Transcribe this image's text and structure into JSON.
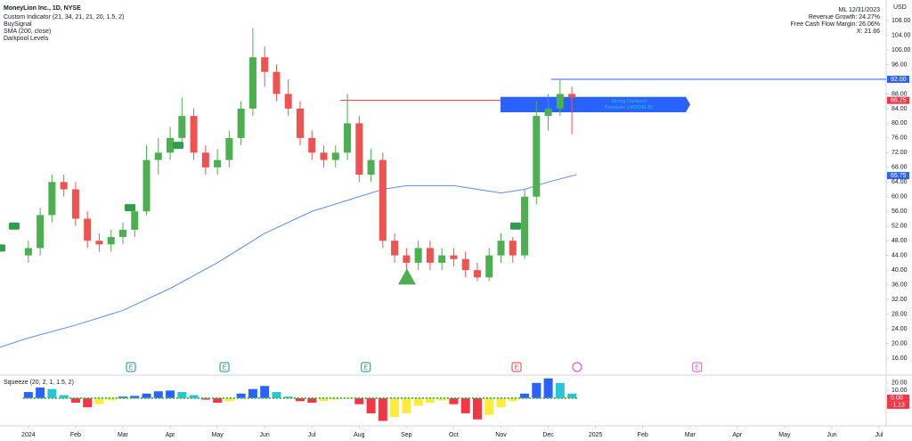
{
  "chart_data": [
    {
      "type": "candlestick",
      "title": "MoneyLion Inc., 1D, NYSE",
      "indicators": [
        "Custom Indicator (21, 34, 21, 21, 20, 1.5, 2)",
        "BuySignal",
        "SMA (200, close)",
        "Darkpool Levels"
      ],
      "currency": "USD",
      "info_lines": [
        "ML 12/31/2023",
        "Revenue Growth: 24.27%",
        "Free Cash Flow Margin: 26.06%",
        "X: 21.66"
      ],
      "up_color": "#4caf50",
      "down_color": "#ef5350",
      "x": [
        0,
        0.25,
        0.5,
        0.75,
        1,
        1.25,
        1.5,
        1.75,
        2,
        2.25,
        2.5,
        2.75,
        3,
        3.25,
        3.5,
        3.75,
        4,
        4.25,
        4.5,
        4.75,
        5,
        5.25,
        5.5,
        5.75,
        6,
        6.25,
        6.5,
        6.75,
        7,
        7.25,
        7.5,
        7.75,
        8,
        8.25,
        8.5,
        8.75,
        9,
        9.25,
        9.5,
        9.75,
        10,
        10.25,
        10.5,
        10.75,
        11,
        11.25,
        11.5
      ],
      "open": [
        44,
        46,
        55,
        64,
        62,
        54,
        48,
        47,
        49,
        51,
        56,
        70,
        72,
        76,
        82,
        72,
        68,
        70,
        76,
        84,
        98,
        94,
        88,
        84,
        76,
        72,
        70,
        72,
        80,
        66,
        70,
        48,
        44,
        42,
        46,
        42,
        44,
        43,
        40,
        38,
        44,
        48,
        44,
        60,
        82,
        84,
        88
      ],
      "high": [
        48,
        57,
        66,
        66,
        64,
        56,
        50,
        51,
        53,
        58,
        74,
        76,
        79,
        87,
        84,
        74,
        73,
        78,
        86,
        106,
        101,
        96,
        92,
        86,
        78,
        74,
        74,
        88,
        82,
        73,
        72,
        50,
        46,
        48,
        48,
        46,
        46,
        45,
        42,
        46,
        50,
        49,
        62,
        86,
        88,
        92,
        90
      ],
      "low": [
        42,
        44,
        53,
        60,
        52,
        46,
        45,
        45,
        47,
        49,
        55,
        66,
        70,
        74,
        70,
        66,
        66,
        68,
        74,
        82,
        90,
        86,
        82,
        74,
        70,
        68,
        68,
        70,
        64,
        64,
        46,
        42,
        40,
        40,
        40,
        40,
        41,
        38,
        37,
        37,
        42,
        42,
        43,
        58,
        78,
        82,
        77
      ],
      "close": [
        46,
        55,
        64,
        62,
        54,
        48,
        47,
        49,
        51,
        56,
        70,
        72,
        76,
        82,
        72,
        68,
        70,
        76,
        84,
        98,
        94,
        88,
        84,
        76,
        72,
        70,
        72,
        80,
        66,
        70,
        48,
        44,
        42,
        46,
        42,
        44,
        43,
        40,
        38,
        44,
        48,
        44,
        60,
        82,
        84,
        88,
        87
      ],
      "overlays": [
        {
          "color": "#5b8def",
          "x": [
            -0.6,
            0,
            1,
            2,
            3,
            4,
            5,
            6,
            7,
            7.5,
            8,
            8.5,
            9,
            9.5,
            10,
            10.5,
            11,
            11.6
          ],
          "values": [
            19,
            21.5,
            25,
            29,
            35,
            42,
            50,
            56,
            60,
            62,
            63,
            63,
            63,
            62,
            61,
            62,
            64,
            66
          ]
        }
      ],
      "levels": [
        {
          "value": 92,
          "from": 11.06,
          "color": "#2962ff"
        },
        {
          "value": 86.25,
          "from": 6.6,
          "to": 10.0,
          "color": "#f23645"
        }
      ],
      "darkpool": {
        "top": 87.2,
        "bottom": 83,
        "from": 9.99,
        "to": 13.91,
        "color": "#2962ff",
        "lines": [
          "Strong Darkpool",
          "Premium: 1455096.25"
        ]
      },
      "signals": [
        {
          "x": -0.6,
          "value": 46
        },
        {
          "x": -0.3,
          "value": 52
        },
        {
          "x": 2.15,
          "value": 57
        },
        {
          "x": 3.17,
          "value": 74
        },
        {
          "x": 10.31,
          "value": 52
        }
      ],
      "triangle": {
        "x": 8.01,
        "value": 38,
        "color": "#4caf50"
      },
      "events": [
        {
          "x": 2.17,
          "label": "E",
          "color": "#089981"
        },
        {
          "x": 4.15,
          "label": "E",
          "color": "#089981"
        },
        {
          "x": 7.14,
          "label": "E",
          "color": "#089981"
        },
        {
          "x": 10.33,
          "label": "E",
          "color": "#f23645"
        },
        {
          "x": 11.61,
          "color": "#c040e0"
        },
        {
          "x": 14.15,
          "label": "E",
          "color": "#e040fb"
        }
      ],
      "last_labels": [
        {
          "value": 92,
          "label": "92.00",
          "color": "#2962ff"
        },
        {
          "value": 86.25,
          "label": "86.25",
          "color": "#f23645"
        },
        {
          "value": 65.75,
          "label": "65.75",
          "color": "#2962ff"
        }
      ],
      "xlim": [
        -0.6,
        18.15
      ],
      "xticks": [
        {
          "value": 0,
          "label": "2024"
        },
        {
          "value": 1,
          "label": "Feb"
        },
        {
          "value": 2,
          "label": "Mar"
        },
        {
          "value": 3,
          "label": "Apr"
        },
        {
          "value": 4,
          "label": "May"
        },
        {
          "value": 5,
          "label": "Jun"
        },
        {
          "value": 6,
          "label": "Jul"
        },
        {
          "value": 7,
          "label": "Aug"
        },
        {
          "value": 8,
          "label": "Sep"
        },
        {
          "value": 9,
          "label": "Oct"
        },
        {
          "value": 10,
          "label": "Nov"
        },
        {
          "value": 11,
          "label": "Dec"
        },
        {
          "value": 12,
          "label": "2025"
        },
        {
          "value": 13,
          "label": "Feb"
        },
        {
          "value": 14,
          "label": "Mar"
        },
        {
          "value": 15,
          "label": "Apr"
        },
        {
          "value": 16,
          "label": "May"
        },
        {
          "value": 17,
          "label": "Jun"
        },
        {
          "value": 18,
          "label": "Jul"
        }
      ],
      "ylim": [
        11.63,
        113.6
      ],
      "yticks": [
        {
          "value": 16,
          "label": "16.00"
        },
        {
          "value": 20,
          "label": "20.00"
        },
        {
          "value": 24,
          "label": "24.00"
        },
        {
          "value": 28,
          "label": "28.00"
        },
        {
          "value": 32,
          "label": "32.00"
        },
        {
          "value": 36,
          "label": "36.00"
        },
        {
          "value": 40,
          "label": "40.00"
        },
        {
          "value": 44,
          "label": "44.00"
        },
        {
          "value": 48,
          "label": "48.00"
        },
        {
          "value": 52,
          "label": "52.00"
        },
        {
          "value": 56,
          "label": "56.00"
        },
        {
          "value": 60,
          "label": "60.00"
        },
        {
          "value": 64,
          "label": "64.00"
        },
        {
          "value": 68,
          "label": "68.00"
        },
        {
          "value": 72,
          "label": "72.00"
        },
        {
          "value": 76,
          "label": "76.00"
        },
        {
          "value": 80,
          "label": "80.00"
        },
        {
          "value": 84,
          "label": "84.00"
        },
        {
          "value": 88,
          "label": "88.00"
        },
        {
          "value": 96,
          "label": "96.00"
        },
        {
          "value": 100,
          "label": "100.00"
        },
        {
          "value": 104,
          "label": "104.00"
        },
        {
          "value": 108,
          "label": "108.00"
        }
      ]
    },
    {
      "type": "bar",
      "title": "Squeeze (20, 2, 1, 1.5, 2)",
      "x": [
        0,
        0.25,
        0.5,
        0.75,
        1,
        1.25,
        1.5,
        1.75,
        2,
        2.25,
        2.5,
        2.75,
        3,
        3.25,
        3.5,
        3.75,
        4,
        4.25,
        4.5,
        4.75,
        5,
        5.25,
        5.5,
        5.75,
        6,
        6.25,
        6.5,
        6.75,
        7,
        7.25,
        7.5,
        7.75,
        8,
        8.25,
        8.5,
        8.75,
        9,
        9.25,
        9.5,
        9.75,
        10,
        10.25,
        10.5,
        10.75,
        11,
        11.25,
        11.5
      ],
      "values": [
        8,
        14,
        12,
        4,
        -6,
        -12,
        -8,
        -3,
        2,
        3,
        6,
        9,
        10,
        8,
        4,
        -2,
        -6,
        -4,
        6,
        12,
        16,
        8,
        2,
        -4,
        -6,
        -4,
        -2,
        -1,
        -8,
        -20,
        -30,
        -25,
        -20,
        -10,
        -6,
        -3,
        -8,
        -20,
        -28,
        -22,
        -12,
        -4,
        6,
        20,
        26,
        20,
        6
      ],
      "colors": {
        "positive_rising": "#2962ff",
        "positive_falling": "#26c6da",
        "negative_falling": "#f23645",
        "negative_rising": "#ffeb3b"
      },
      "zero_color": "#4caf50",
      "last_labels": [
        {
          "value": 0,
          "label": "0.00",
          "color": "#f23645"
        },
        {
          "value": -1.13,
          "label": "-1.13",
          "color": "#f23645"
        }
      ],
      "ylim": [
        -36.5,
        28
      ],
      "yticks": [
        {
          "value": 20,
          "label": "20.00"
        },
        {
          "value": 10,
          "label": "10.00"
        }
      ]
    }
  ]
}
